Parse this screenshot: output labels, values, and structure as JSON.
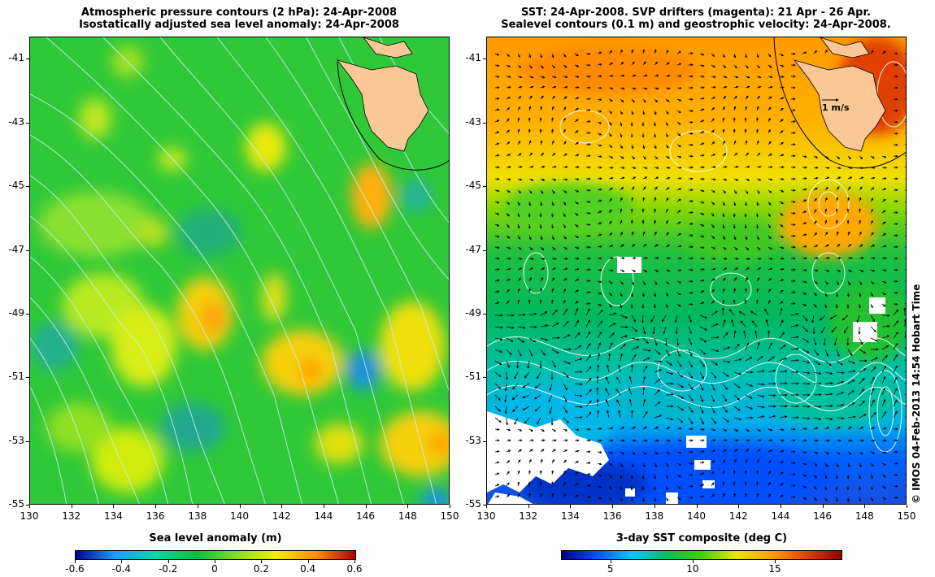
{
  "left_panel": {
    "title_line1": "Atmospheric pressure contours (2 hPa): 24-Apr-2008",
    "title_line2": "Isostatically adjusted sea level anomaly: 24-Apr-2008",
    "colorbar": {
      "label": "Sea level anomaly (m)",
      "ticks": [
        "-0.6",
        "-0.4",
        "-0.2",
        "0",
        "0.2",
        "0.4",
        "0.6"
      ],
      "range": [
        -0.6,
        0.6
      ]
    }
  },
  "right_panel": {
    "title_line1": "SST: 24-Apr-2008. SVP drifters (magenta): 21 Apr - 26 Apr.",
    "title_line2": "Sealevel contours (0.1 m) and geostrophic velocity: 24-Apr-2008.",
    "scale_arrow_label": "1 m/s",
    "colorbar": {
      "label": "3-day SST composite (deg C)",
      "ticks": [
        "5",
        "10",
        "15"
      ],
      "range": [
        2,
        19
      ]
    }
  },
  "axes": {
    "lat_ticks": [
      "-41",
      "-43",
      "-45",
      "-47",
      "-49",
      "-51",
      "-53",
      "-55"
    ],
    "lon_ticks": [
      "130",
      "132",
      "134",
      "136",
      "138",
      "140",
      "142",
      "144",
      "146",
      "148",
      "150"
    ],
    "lat_range": [
      -55,
      -40.3
    ],
    "lon_range": [
      130,
      150
    ]
  },
  "copyright": "© IMOS 04-Feb-2013 14:54 Hobart Time",
  "colors": {
    "land": "#f9c896",
    "sla_scale": [
      "#00008b",
      "#1aa0ff",
      "#00d8a8",
      "#00c040",
      "#80e020",
      "#f0f000",
      "#ff9000",
      "#b00000"
    ],
    "sst_scale": [
      "#000080",
      "#0050ff",
      "#00c8ff",
      "#00c060",
      "#40d000",
      "#e8e800",
      "#ffa000",
      "#e04000",
      "#900000"
    ]
  }
}
